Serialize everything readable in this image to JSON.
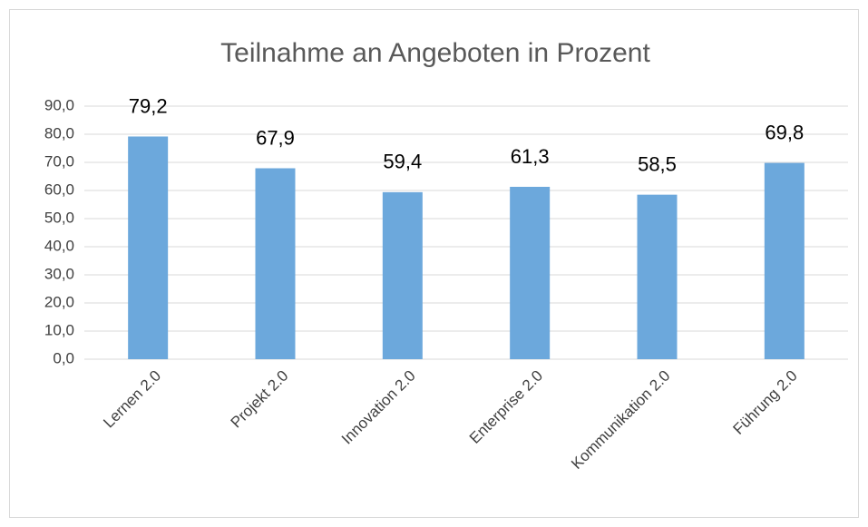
{
  "chart_data": {
    "type": "bar",
    "title": "Teilnahme an Angeboten in Prozent",
    "categories": [
      "Lernen 2.0",
      "Projekt 2.0",
      "Innovation 2.0",
      "Enterprise 2.0",
      "Kommunikation 2.0",
      "Führung 2.0"
    ],
    "values": [
      79.2,
      67.9,
      59.4,
      61.3,
      58.5,
      69.8
    ],
    "value_labels": [
      "79,2",
      "67,9",
      "59,4",
      "61,3",
      "58,5",
      "69,8"
    ],
    "color": "#6ca8dc",
    "ylim": [
      0,
      90
    ],
    "yticks": [
      {
        "value": 0,
        "label": "0,0"
      },
      {
        "value": 10,
        "label": "10,0"
      },
      {
        "value": 20,
        "label": "20,0"
      },
      {
        "value": 30,
        "label": "30,0"
      },
      {
        "value": 40,
        "label": "40,0"
      },
      {
        "value": 50,
        "label": "50,0"
      },
      {
        "value": 60,
        "label": "60,0"
      },
      {
        "value": 70,
        "label": "70,0"
      },
      {
        "value": 80,
        "label": "80,0"
      },
      {
        "value": 90,
        "label": "90,0"
      }
    ],
    "grid": true
  }
}
